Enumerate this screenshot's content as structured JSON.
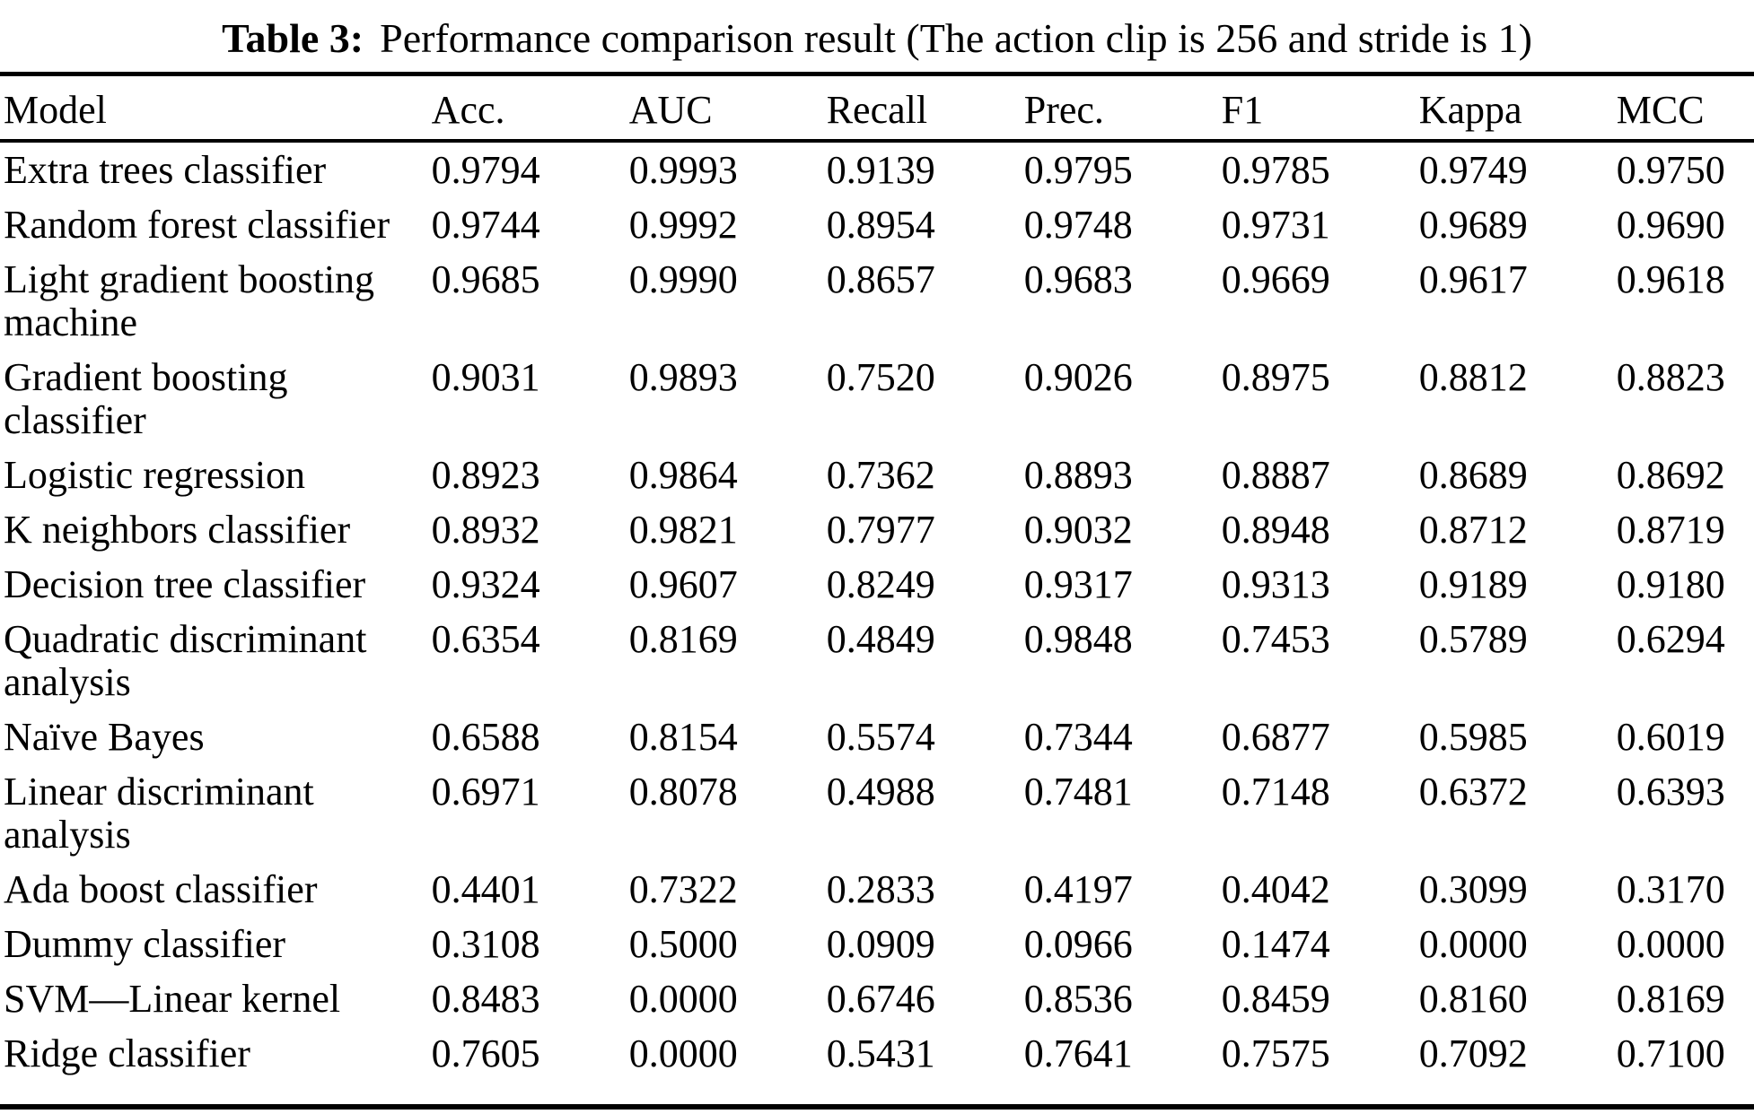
{
  "caption": {
    "label": "Table 3:",
    "text": "Performance comparison result (The action clip is 256 and stride is 1)"
  },
  "table": {
    "columns": [
      "Model",
      "Acc.",
      "AUC",
      "Recall",
      "Prec.",
      "F1",
      "Kappa",
      "MCC"
    ],
    "rows": [
      {
        "model": "Extra trees classifier",
        "values": [
          "0.9794",
          "0.9993",
          "0.9139",
          "0.9795",
          "0.9785",
          "0.9749",
          "0.9750"
        ]
      },
      {
        "model": "Random forest classifier",
        "values": [
          "0.9744",
          "0.9992",
          "0.8954",
          "0.9748",
          "0.9731",
          "0.9689",
          "0.9690"
        ]
      },
      {
        "model": "Light gradient boosting machine",
        "values": [
          "0.9685",
          "0.9990",
          "0.8657",
          "0.9683",
          "0.9669",
          "0.9617",
          "0.9618"
        ]
      },
      {
        "model": "Gradient boosting classifier",
        "values": [
          "0.9031",
          "0.9893",
          "0.7520",
          "0.9026",
          "0.8975",
          "0.8812",
          "0.8823"
        ]
      },
      {
        "model": "Logistic regression",
        "values": [
          "0.8923",
          "0.9864",
          "0.7362",
          "0.8893",
          "0.8887",
          "0.8689",
          "0.8692"
        ]
      },
      {
        "model": "K neighbors classifier",
        "values": [
          "0.8932",
          "0.9821",
          "0.7977",
          "0.9032",
          "0.8948",
          "0.8712",
          "0.8719"
        ]
      },
      {
        "model": "Decision tree classifier",
        "values": [
          "0.9324",
          "0.9607",
          "0.8249",
          "0.9317",
          "0.9313",
          "0.9189",
          "0.9180"
        ]
      },
      {
        "model": "Quadratic discriminant analysis",
        "values": [
          "0.6354",
          "0.8169",
          "0.4849",
          "0.9848",
          "0.7453",
          "0.5789",
          "0.6294"
        ]
      },
      {
        "model": "Naïve Bayes",
        "values": [
          "0.6588",
          "0.8154",
          "0.5574",
          "0.7344",
          "0.6877",
          "0.5985",
          "0.6019"
        ]
      },
      {
        "model": "Linear discriminant analysis",
        "values": [
          "0.6971",
          "0.8078",
          "0.4988",
          "0.7481",
          "0.7148",
          "0.6372",
          "0.6393"
        ]
      },
      {
        "model": "Ada boost classifier",
        "values": [
          "0.4401",
          "0.7322",
          "0.2833",
          "0.4197",
          "0.4042",
          "0.3099",
          "0.3170"
        ]
      },
      {
        "model": "Dummy classifier",
        "values": [
          "0.3108",
          "0.5000",
          "0.0909",
          "0.0966",
          "0.1474",
          "0.0000",
          "0.0000"
        ]
      },
      {
        "model": "SVM—Linear kernel",
        "values": [
          "0.8483",
          "0.0000",
          "0.6746",
          "0.8536",
          "0.8459",
          "0.8160",
          "0.8169"
        ]
      },
      {
        "model": "Ridge classifier",
        "values": [
          "0.7605",
          "0.0000",
          "0.5431",
          "0.7641",
          "0.7575",
          "0.7092",
          "0.7100"
        ]
      }
    ]
  },
  "chart_data": {
    "type": "table",
    "title": "Table 3: Performance comparison result (The action clip is 256 and stride is 1)",
    "columns": [
      "Model",
      "Acc.",
      "AUC",
      "Recall",
      "Prec.",
      "F1",
      "Kappa",
      "MCC"
    ],
    "rows": [
      [
        "Extra trees classifier",
        0.9794,
        0.9993,
        0.9139,
        0.9795,
        0.9785,
        0.9749,
        0.975
      ],
      [
        "Random forest classifier",
        0.9744,
        0.9992,
        0.8954,
        0.9748,
        0.9731,
        0.9689,
        0.969
      ],
      [
        "Light gradient boosting machine",
        0.9685,
        0.999,
        0.8657,
        0.9683,
        0.9669,
        0.9617,
        0.9618
      ],
      [
        "Gradient boosting classifier",
        0.9031,
        0.9893,
        0.752,
        0.9026,
        0.8975,
        0.8812,
        0.8823
      ],
      [
        "Logistic regression",
        0.8923,
        0.9864,
        0.7362,
        0.8893,
        0.8887,
        0.8689,
        0.8692
      ],
      [
        "K neighbors classifier",
        0.8932,
        0.9821,
        0.7977,
        0.9032,
        0.8948,
        0.8712,
        0.8719
      ],
      [
        "Decision tree classifier",
        0.9324,
        0.9607,
        0.8249,
        0.9317,
        0.9313,
        0.9189,
        0.918
      ],
      [
        "Quadratic discriminant analysis",
        0.6354,
        0.8169,
        0.4849,
        0.9848,
        0.7453,
        0.5789,
        0.6294
      ],
      [
        "Naïve Bayes",
        0.6588,
        0.8154,
        0.5574,
        0.7344,
        0.6877,
        0.5985,
        0.6019
      ],
      [
        "Linear discriminant analysis",
        0.6971,
        0.8078,
        0.4988,
        0.7481,
        0.7148,
        0.6372,
        0.6393
      ],
      [
        "Ada boost classifier",
        0.4401,
        0.7322,
        0.2833,
        0.4197,
        0.4042,
        0.3099,
        0.317
      ],
      [
        "Dummy classifier",
        0.3108,
        0.5,
        0.0909,
        0.0966,
        0.1474,
        0.0,
        0.0
      ],
      [
        "SVM—Linear kernel",
        0.8483,
        0.0,
        0.6746,
        0.8536,
        0.8459,
        0.816,
        0.8169
      ],
      [
        "Ridge classifier",
        0.7605,
        0.0,
        0.5431,
        0.7641,
        0.7575,
        0.7092,
        0.71
      ]
    ]
  }
}
